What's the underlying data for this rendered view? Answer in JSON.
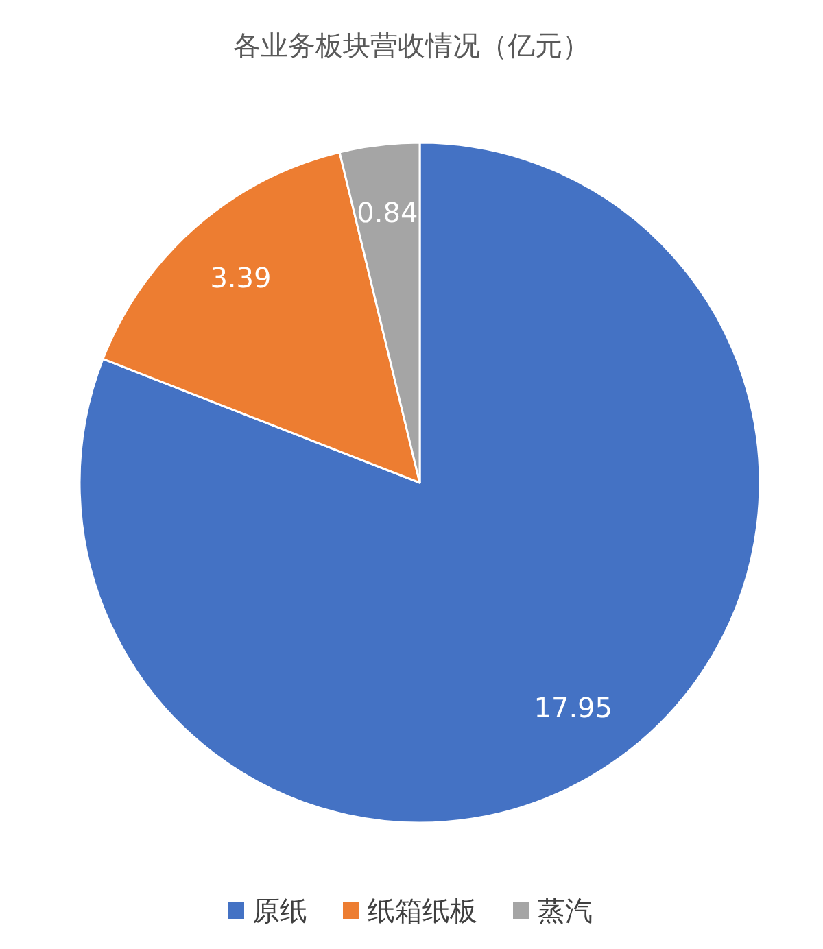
{
  "chart_data": {
    "type": "pie",
    "title": "各业务板块营收情况（亿元）",
    "categories": [
      "原纸",
      "纸箱纸板",
      "蒸汽"
    ],
    "values": [
      17.95,
      3.39,
      0.84
    ],
    "colors": [
      "#4472c4",
      "#ed7d31",
      "#a5a5a5"
    ],
    "data_labels": true,
    "legend": "bottom"
  }
}
